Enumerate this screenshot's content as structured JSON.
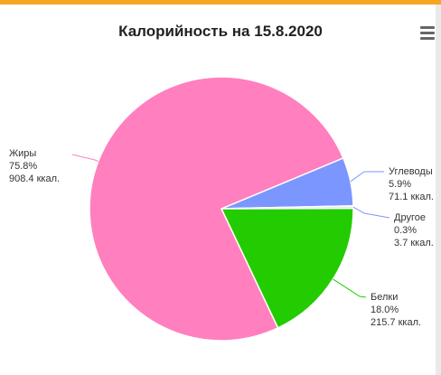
{
  "chart_data": {
    "type": "pie",
    "title": "Калорийность на 15.8.2020",
    "slices": [
      {
        "name": "Углеводы",
        "percent": "5.9%",
        "kcal": "71.1 ккал.",
        "value": 71.1,
        "color": "#7b96ff"
      },
      {
        "name": "Другое",
        "percent": "0.3%",
        "kcal": "3.7 ккал.",
        "value": 3.7,
        "color": "#d9e6ef"
      },
      {
        "name": "Белки",
        "percent": "18.0%",
        "kcal": "215.7 ккал.",
        "value": 215.7,
        "color": "#22cc00"
      },
      {
        "name": "Жиры",
        "percent": "75.8%",
        "kcal": "908.4 ккал.",
        "value": 908.4,
        "color": "#ff7fbf"
      }
    ]
  },
  "menu": {
    "icon": "hamburger-menu-icon"
  }
}
